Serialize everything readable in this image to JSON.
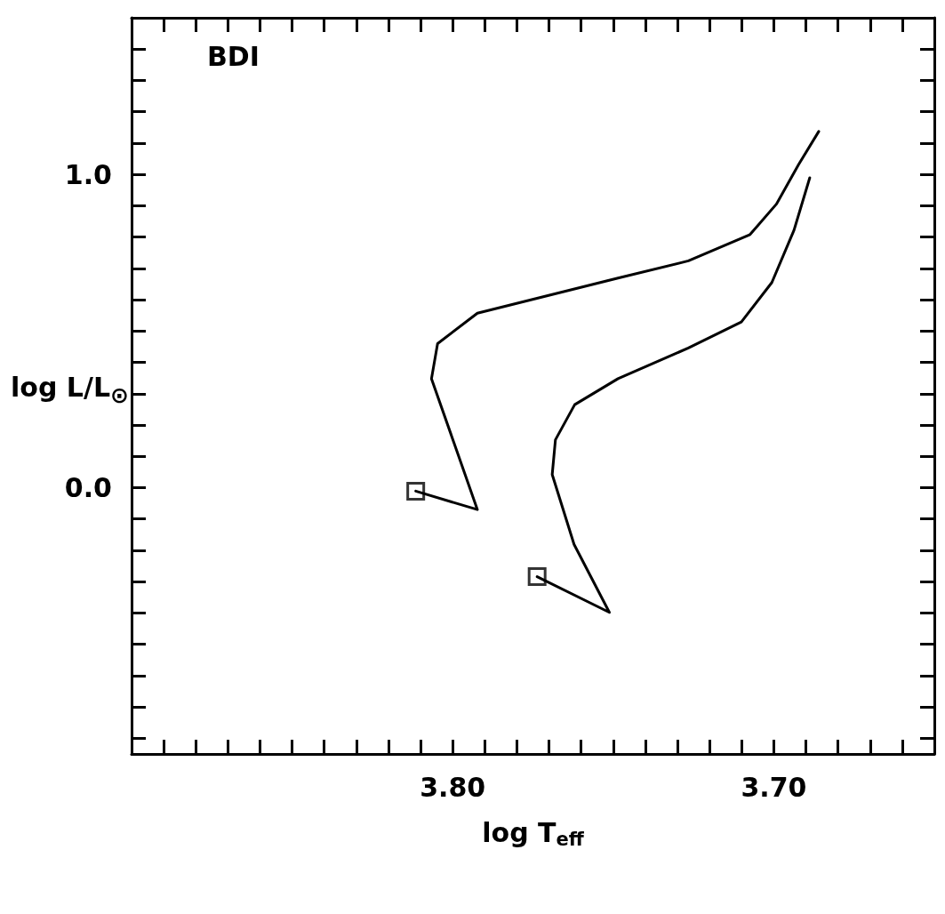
{
  "chart_data": {
    "type": "line",
    "xlabel": "log T$_{eff}$",
    "ylabel": "log L/L$_{⊙}$",
    "annotations": [
      "BDI"
    ],
    "xlim": [
      3.9,
      3.65
    ],
    "ylim": [
      -0.85,
      1.5
    ],
    "xticks": [
      {
        "value": 3.89,
        "label": null
      },
      {
        "value": 3.88,
        "label": null
      },
      {
        "value": 3.87,
        "label": null
      },
      {
        "value": 3.86,
        "label": null
      },
      {
        "value": 3.85,
        "label": null
      },
      {
        "value": 3.84,
        "label": null
      },
      {
        "value": 3.83,
        "label": null
      },
      {
        "value": 3.82,
        "label": null
      },
      {
        "value": 3.81,
        "label": null
      },
      {
        "value": 3.8,
        "label": "3.80"
      },
      {
        "value": 3.79,
        "label": null
      },
      {
        "value": 3.78,
        "label": null
      },
      {
        "value": 3.77,
        "label": null
      },
      {
        "value": 3.76,
        "label": null
      },
      {
        "value": 3.75,
        "label": null
      },
      {
        "value": 3.74,
        "label": null
      },
      {
        "value": 3.73,
        "label": null
      },
      {
        "value": 3.72,
        "label": null
      },
      {
        "value": 3.71,
        "label": null
      },
      {
        "value": 3.7,
        "label": "3.70"
      },
      {
        "value": 3.69,
        "label": null
      },
      {
        "value": 3.68,
        "label": null
      },
      {
        "value": 3.67,
        "label": null
      },
      {
        "value": 3.66,
        "label": null
      }
    ],
    "yticks": [
      {
        "value": -0.8,
        "label": null
      },
      {
        "value": -0.7,
        "label": null
      },
      {
        "value": -0.6,
        "label": null
      },
      {
        "value": -0.5,
        "label": null
      },
      {
        "value": -0.4,
        "label": null
      },
      {
        "value": -0.3,
        "label": null
      },
      {
        "value": -0.2,
        "label": null
      },
      {
        "value": -0.1,
        "label": null
      },
      {
        "value": 0,
        "label": "0.0"
      },
      {
        "value": 0.1,
        "label": null
      },
      {
        "value": 0.2,
        "label": null
      },
      {
        "value": 0.3,
        "label": null
      },
      {
        "value": 0.4,
        "label": null
      },
      {
        "value": 0.5,
        "label": null
      },
      {
        "value": 0.6,
        "label": null
      },
      {
        "value": 0.7,
        "label": null
      },
      {
        "value": 0.8,
        "label": null
      },
      {
        "value": 0.9,
        "label": null
      },
      {
        "value": 1,
        "label": "1.0"
      },
      {
        "value": 1.1,
        "label": null
      },
      {
        "value": 1.2,
        "label": null
      },
      {
        "value": 1.3,
        "label": null
      },
      {
        "value": 1.4,
        "label": null
      }
    ],
    "grid": false,
    "series": [
      {
        "marker": "none",
        "line_style": "solid",
        "color": "#000000",
        "x": [
          3.8115,
          3.7923,
          3.8066,
          3.8047,
          3.7923,
          3.7704,
          3.7485,
          3.7266,
          3.7074,
          3.6992,
          3.6923,
          3.686
        ],
        "values": [
          -0.011,
          -0.07,
          0.348,
          0.46,
          0.557,
          0.613,
          0.669,
          0.724,
          0.808,
          0.905,
          1.031,
          1.137
        ]
      },
      {
        "marker": "none",
        "line_style": "solid",
        "color": "#000000",
        "x": [
          3.7737,
          3.7512,
          3.7622,
          3.769,
          3.768,
          3.762,
          3.7485,
          3.7266,
          3.7101,
          3.7006,
          3.6937,
          3.6888
        ],
        "values": [
          -0.284,
          -0.398,
          -0.181,
          0.042,
          0.153,
          0.265,
          0.348,
          0.446,
          0.529,
          0.655,
          0.822,
          0.989
        ]
      },
      {
        "type": "scatter",
        "marker": "square",
        "color": "#000000",
        "x": [
          3.8115,
          3.7737
        ],
        "values": [
          -0.011,
          -0.284
        ]
      }
    ]
  }
}
